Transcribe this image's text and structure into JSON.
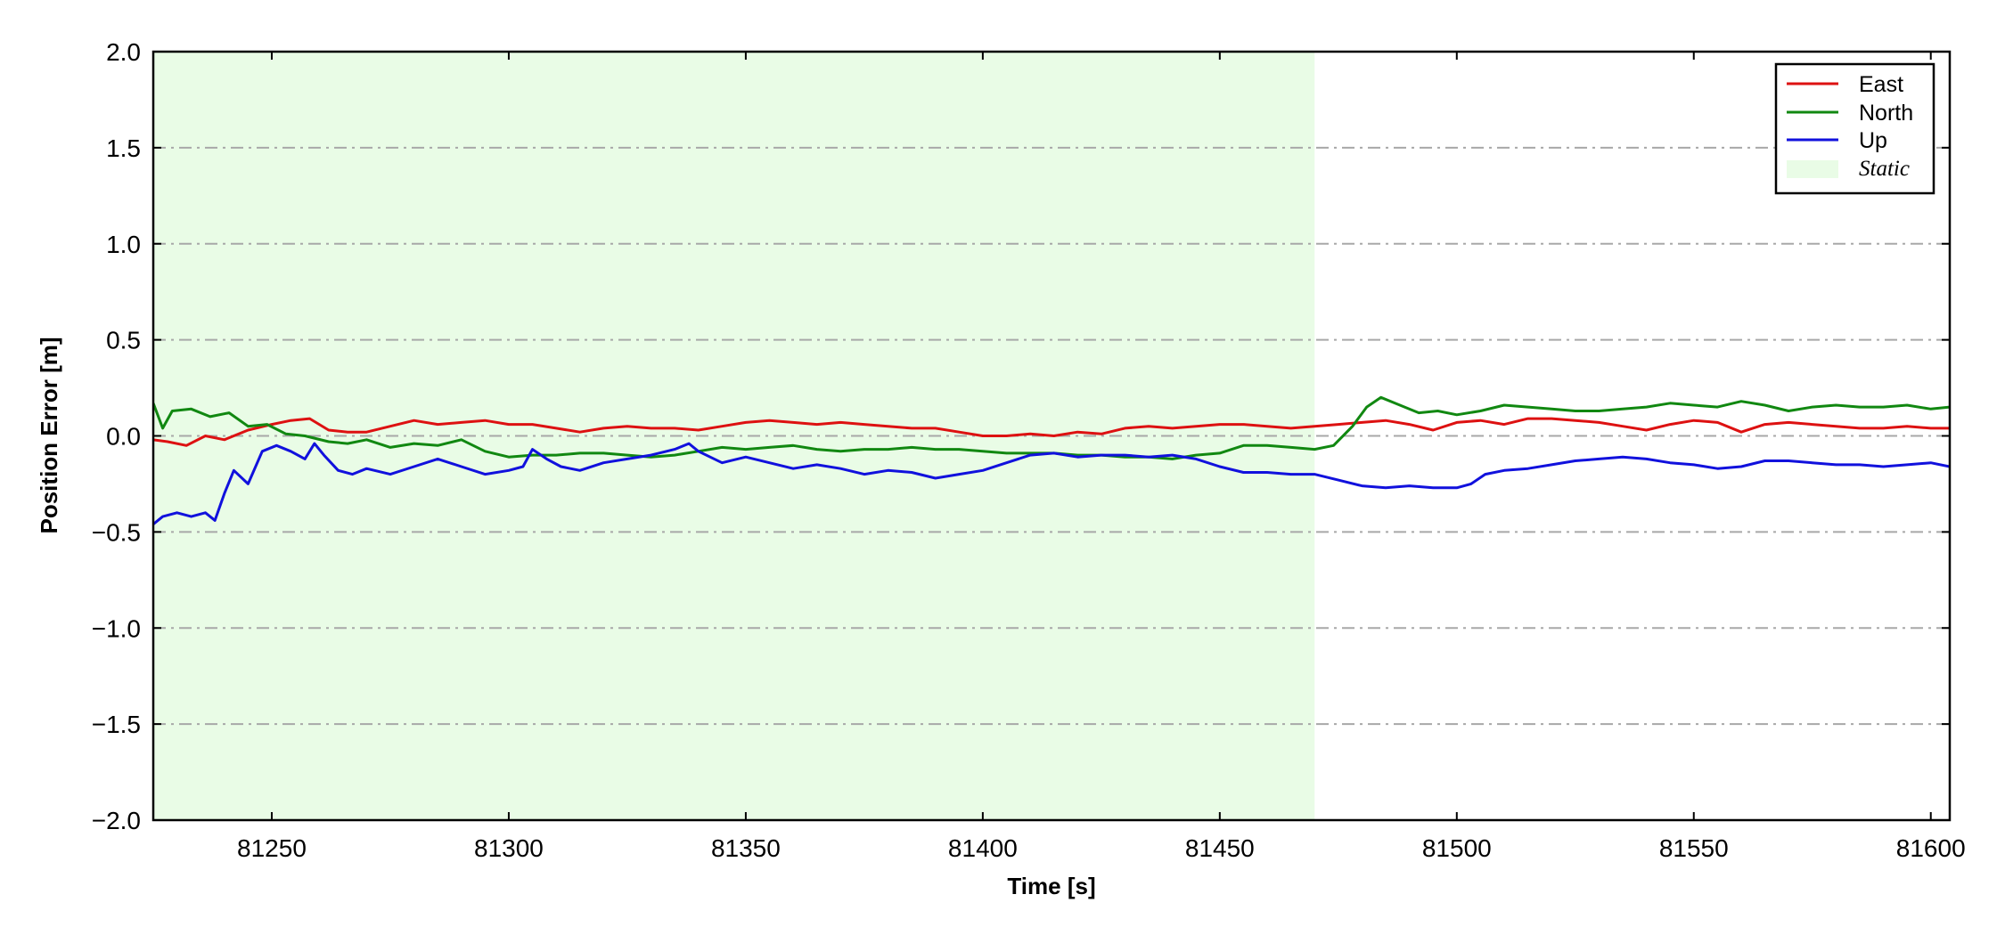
{
  "chart_data": {
    "type": "line",
    "title": "",
    "xlabel": "Time [s]",
    "ylabel": "Position Error [m]",
    "xlim": [
      81225,
      81604
    ],
    "ylim": [
      -2.0,
      2.0
    ],
    "x_ticks": [
      81250,
      81300,
      81350,
      81400,
      81450,
      81500,
      81550,
      81600
    ],
    "x_tick_labels": [
      "81250",
      "81300",
      "81350",
      "81400",
      "81450",
      "81500",
      "81550",
      "81600"
    ],
    "y_ticks": [
      2.0,
      1.5,
      1.0,
      0.5,
      0.0,
      -0.5,
      -1.0,
      -1.5,
      -2.0
    ],
    "y_tick_labels": [
      "2.0",
      "1.5",
      "1.0",
      "0.5",
      "0.0",
      "−0.5",
      "−1.0",
      "−1.5",
      "−2.0"
    ],
    "grid": "horizontal dash-dot",
    "legend_position": "top-right",
    "static_region": {
      "label": "Static",
      "x_start": 81225,
      "x_end": 81470,
      "color": "#e9fce6"
    },
    "series": [
      {
        "name": "East",
        "color": "#dd1111",
        "x": [
          81225,
          81228,
          81232,
          81236,
          81240,
          81245,
          81250,
          81254,
          81258,
          81262,
          81266,
          81270,
          81275,
          81280,
          81285,
          81290,
          81295,
          81300,
          81305,
          81310,
          81315,
          81320,
          81325,
          81330,
          81335,
          81340,
          81345,
          81350,
          81355,
          81360,
          81365,
          81370,
          81375,
          81380,
          81385,
          81390,
          81395,
          81400,
          81405,
          81410,
          81415,
          81420,
          81425,
          81430,
          81435,
          81440,
          81445,
          81450,
          81455,
          81460,
          81465,
          81470,
          81475,
          81480,
          81485,
          81490,
          81495,
          81500,
          81505,
          81510,
          81515,
          81520,
          81525,
          81530,
          81535,
          81540,
          81545,
          81550,
          81555,
          81560,
          81565,
          81570,
          81575,
          81580,
          81585,
          81590,
          81595,
          81600,
          81604
        ],
        "y": [
          -0.02,
          -0.03,
          -0.05,
          0.0,
          -0.02,
          0.03,
          0.06,
          0.08,
          0.09,
          0.03,
          0.02,
          0.02,
          0.05,
          0.08,
          0.06,
          0.07,
          0.08,
          0.06,
          0.06,
          0.04,
          0.02,
          0.04,
          0.05,
          0.04,
          0.04,
          0.03,
          0.05,
          0.07,
          0.08,
          0.07,
          0.06,
          0.07,
          0.06,
          0.05,
          0.04,
          0.04,
          0.02,
          0.0,
          0.0,
          0.01,
          0.0,
          0.02,
          0.01,
          0.04,
          0.05,
          0.04,
          0.05,
          0.06,
          0.06,
          0.05,
          0.04,
          0.05,
          0.06,
          0.07,
          0.08,
          0.06,
          0.03,
          0.07,
          0.08,
          0.06,
          0.09,
          0.09,
          0.08,
          0.07,
          0.05,
          0.03,
          0.06,
          0.08,
          0.07,
          0.02,
          0.06,
          0.07,
          0.06,
          0.05,
          0.04,
          0.04,
          0.05,
          0.04,
          0.04
        ]
      },
      {
        "name": "North",
        "color": "#118811",
        "x": [
          81225,
          81227,
          81229,
          81233,
          81237,
          81241,
          81245,
          81249,
          81253,
          81257,
          81262,
          81266,
          81270,
          81275,
          81280,
          81285,
          81290,
          81295,
          81300,
          81305,
          81310,
          81315,
          81320,
          81325,
          81330,
          81335,
          81340,
          81345,
          81350,
          81355,
          81360,
          81365,
          81370,
          81375,
          81380,
          81385,
          81390,
          81395,
          81400,
          81405,
          81410,
          81415,
          81420,
          81425,
          81430,
          81435,
          81440,
          81445,
          81450,
          81455,
          81460,
          81465,
          81470,
          81474,
          81478,
          81481,
          81484,
          81488,
          81492,
          81496,
          81500,
          81505,
          81510,
          81515,
          81520,
          81525,
          81530,
          81535,
          81540,
          81545,
          81550,
          81555,
          81560,
          81565,
          81570,
          81575,
          81580,
          81585,
          81590,
          81595,
          81600,
          81604
        ],
        "y": [
          0.17,
          0.04,
          0.13,
          0.14,
          0.1,
          0.12,
          0.05,
          0.06,
          0.01,
          0.0,
          -0.03,
          -0.04,
          -0.02,
          -0.06,
          -0.04,
          -0.05,
          -0.02,
          -0.08,
          -0.11,
          -0.1,
          -0.1,
          -0.09,
          -0.09,
          -0.1,
          -0.11,
          -0.1,
          -0.08,
          -0.06,
          -0.07,
          -0.06,
          -0.05,
          -0.07,
          -0.08,
          -0.07,
          -0.07,
          -0.06,
          -0.07,
          -0.07,
          -0.08,
          -0.09,
          -0.09,
          -0.09,
          -0.1,
          -0.1,
          -0.11,
          -0.11,
          -0.12,
          -0.1,
          -0.09,
          -0.05,
          -0.05,
          -0.06,
          -0.07,
          -0.05,
          0.05,
          0.15,
          0.2,
          0.16,
          0.12,
          0.13,
          0.11,
          0.13,
          0.16,
          0.15,
          0.14,
          0.13,
          0.13,
          0.14,
          0.15,
          0.17,
          0.16,
          0.15,
          0.18,
          0.16,
          0.13,
          0.15,
          0.16,
          0.15,
          0.15,
          0.16,
          0.14,
          0.15
        ]
      },
      {
        "name": "Up",
        "color": "#1111dd",
        "x": [
          81225,
          81227,
          81230,
          81233,
          81236,
          81238,
          81240,
          81242,
          81245,
          81248,
          81251,
          81254,
          81257,
          81259,
          81261,
          81264,
          81267,
          81270,
          81275,
          81280,
          81285,
          81290,
          81295,
          81300,
          81303,
          81305,
          81308,
          81311,
          81315,
          81320,
          81325,
          81330,
          81335,
          81338,
          81340,
          81345,
          81350,
          81355,
          81360,
          81365,
          81370,
          81375,
          81380,
          81385,
          81390,
          81395,
          81400,
          81405,
          81410,
          81415,
          81420,
          81425,
          81430,
          81435,
          81440,
          81445,
          81450,
          81455,
          81460,
          81465,
          81470,
          81475,
          81480,
          81485,
          81490,
          81495,
          81500,
          81503,
          81506,
          81510,
          81515,
          81520,
          81525,
          81530,
          81535,
          81540,
          81545,
          81550,
          81555,
          81560,
          81565,
          81570,
          81575,
          81580,
          81585,
          81590,
          81595,
          81600,
          81604
        ],
        "y": [
          -0.46,
          -0.42,
          -0.4,
          -0.42,
          -0.4,
          -0.44,
          -0.3,
          -0.18,
          -0.25,
          -0.08,
          -0.05,
          -0.08,
          -0.12,
          -0.04,
          -0.1,
          -0.18,
          -0.2,
          -0.17,
          -0.2,
          -0.16,
          -0.12,
          -0.16,
          -0.2,
          -0.18,
          -0.16,
          -0.07,
          -0.12,
          -0.16,
          -0.18,
          -0.14,
          -0.12,
          -0.1,
          -0.07,
          -0.04,
          -0.08,
          -0.14,
          -0.11,
          -0.14,
          -0.17,
          -0.15,
          -0.17,
          -0.2,
          -0.18,
          -0.19,
          -0.22,
          -0.2,
          -0.18,
          -0.14,
          -0.1,
          -0.09,
          -0.11,
          -0.1,
          -0.1,
          -0.11,
          -0.1,
          -0.12,
          -0.16,
          -0.19,
          -0.19,
          -0.2,
          -0.2,
          -0.23,
          -0.26,
          -0.27,
          -0.26,
          -0.27,
          -0.27,
          -0.25,
          -0.2,
          -0.18,
          -0.17,
          -0.15,
          -0.13,
          -0.12,
          -0.11,
          -0.12,
          -0.14,
          -0.15,
          -0.17,
          -0.16,
          -0.13,
          -0.13,
          -0.14,
          -0.15,
          -0.15,
          -0.16,
          -0.15,
          -0.14,
          -0.16
        ]
      }
    ]
  }
}
